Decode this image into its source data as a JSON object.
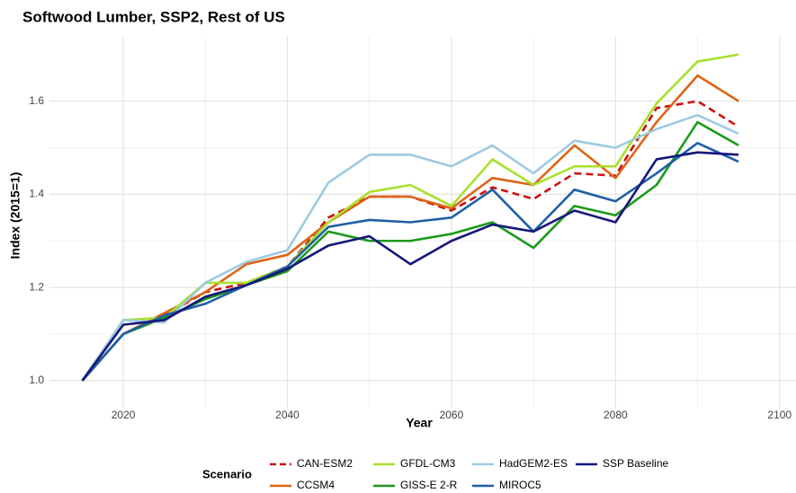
{
  "chart_data": {
    "type": "line",
    "title": "Softwood Lumber, SSP2, Rest of US",
    "x_label": "Year",
    "y_label": "Index (2015=1)",
    "legend_title": "Scenario",
    "legend_position": "bottom",
    "grid": true,
    "xlim": [
      2011,
      2102
    ],
    "xticks": [
      2020,
      2040,
      2060,
      2080,
      2100
    ],
    "ylim": [
      0.94,
      1.74
    ],
    "yticks": [
      {
        "value": 1.0,
        "label": "1.0"
      },
      1.2,
      1.4,
      1.6
    ],
    "x": [
      2015,
      2020,
      2025,
      2030,
      2035,
      2040,
      2045,
      2050,
      2055,
      2060,
      2065,
      2070,
      2075,
      2080,
      2085,
      2090,
      2095
    ],
    "series": [
      {
        "name": "CAN-ESM2",
        "color": "#cc1111",
        "dash": true,
        "values": [
          1.0,
          1.1,
          1.14,
          1.19,
          1.21,
          1.245,
          1.35,
          1.395,
          1.395,
          1.365,
          1.415,
          1.39,
          1.445,
          1.44,
          1.585,
          1.6,
          1.545
        ]
      },
      {
        "name": "CCSM4",
        "color": "#dd6418",
        "values": [
          1.0,
          1.1,
          1.145,
          1.19,
          1.25,
          1.27,
          1.34,
          1.395,
          1.395,
          1.37,
          1.435,
          1.42,
          1.505,
          1.435,
          1.555,
          1.655,
          1.6
        ]
      },
      {
        "name": "GFDL-CM3",
        "color": "#a8e02c",
        "values": [
          1.0,
          1.13,
          1.135,
          1.21,
          1.21,
          1.245,
          1.34,
          1.405,
          1.42,
          1.375,
          1.475,
          1.42,
          1.46,
          1.46,
          1.595,
          1.685,
          1.7
        ]
      },
      {
        "name": "GISS-E 2-R",
        "color": "#1c9a1c",
        "values": [
          1.0,
          1.1,
          1.135,
          1.175,
          1.205,
          1.235,
          1.32,
          1.3,
          1.3,
          1.315,
          1.34,
          1.285,
          1.375,
          1.355,
          1.42,
          1.555,
          1.505
        ]
      },
      {
        "name": "HadGEM2-ES",
        "color": "#9ecae1",
        "values": [
          1.0,
          1.13,
          1.125,
          1.21,
          1.255,
          1.28,
          1.425,
          1.485,
          1.485,
          1.46,
          1.505,
          1.445,
          1.515,
          1.5,
          1.54,
          1.57,
          1.53
        ]
      },
      {
        "name": "MIROC5",
        "color": "#1f5fa6",
        "values": [
          1.0,
          1.1,
          1.14,
          1.165,
          1.205,
          1.245,
          1.33,
          1.345,
          1.34,
          1.35,
          1.41,
          1.32,
          1.41,
          1.385,
          1.445,
          1.51,
          1.47
        ]
      },
      {
        "name": "SSP Baseline",
        "color": "#16187a",
        "values": [
          1.0,
          1.12,
          1.13,
          1.18,
          1.205,
          1.24,
          1.29,
          1.31,
          1.25,
          1.3,
          1.335,
          1.32,
          1.365,
          1.34,
          1.475,
          1.49,
          1.485
        ]
      }
    ]
  }
}
